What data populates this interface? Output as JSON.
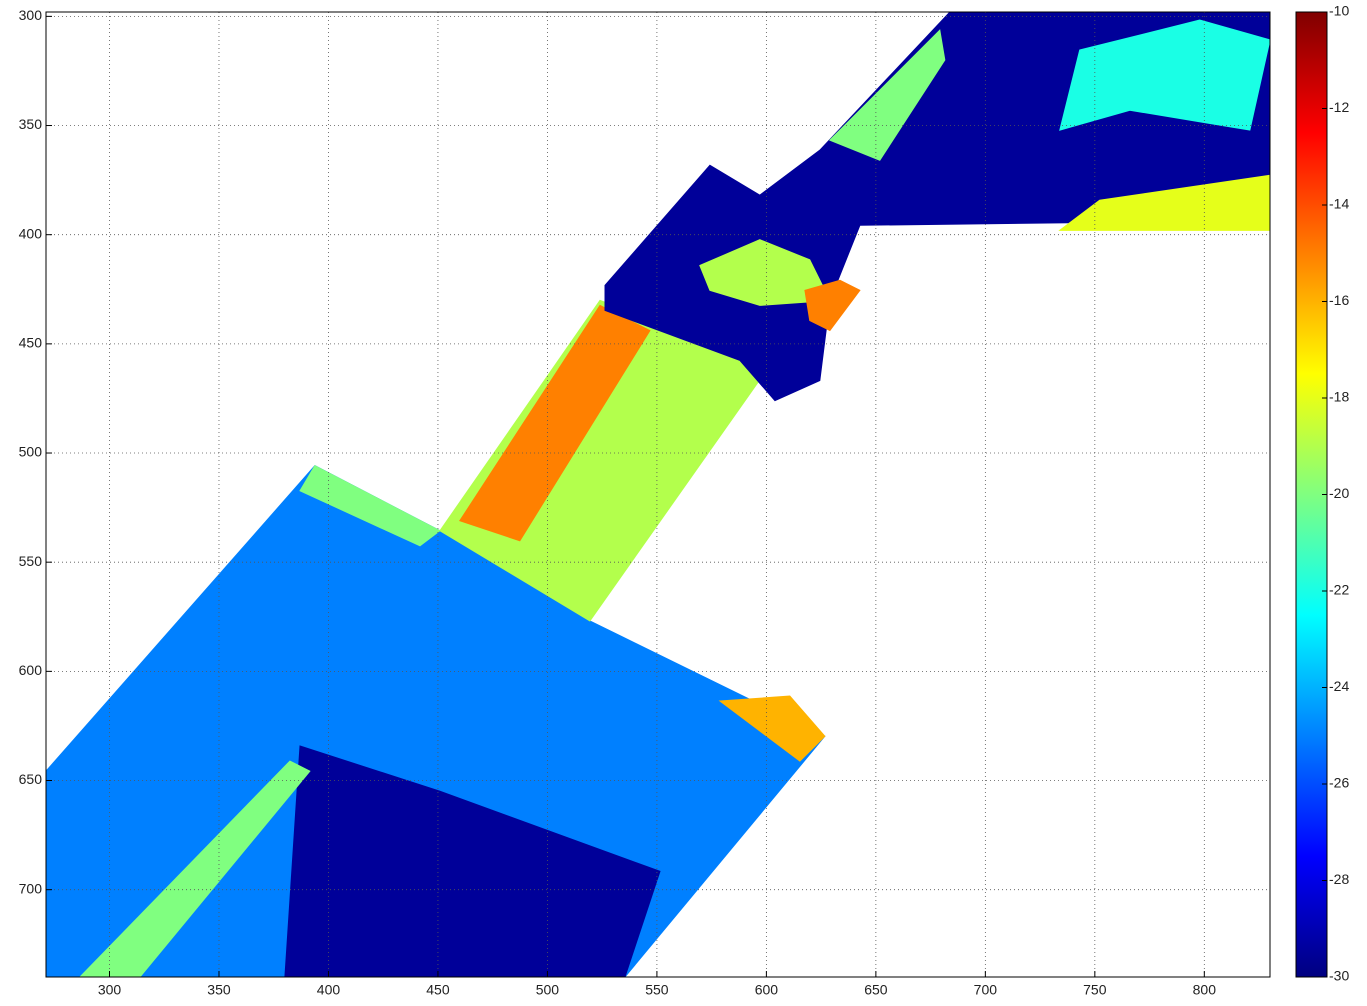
{
  "chart_data": {
    "type": "heatmap",
    "colormap": "jet",
    "ydir": "reverse",
    "grid": true,
    "xlim": [
      271,
      830
    ],
    "ylim": [
      298,
      740
    ],
    "xticks": [
      300,
      350,
      400,
      450,
      500,
      550,
      600,
      650,
      700,
      750,
      800
    ],
    "yticks": [
      300,
      350,
      400,
      450,
      500,
      550,
      600,
      650,
      700
    ],
    "clim": [
      -30,
      -10
    ],
    "cticks": [
      -10,
      -12,
      -14,
      -16,
      -18,
      -20,
      -22,
      -24,
      -26,
      -28,
      -30
    ],
    "regions": [
      {
        "points": [
          [
            271,
            645.7
          ],
          [
            393.8,
            505.8
          ],
          [
            450.9,
            535.6
          ],
          [
            519.4,
            576.9
          ],
          [
            626.7,
            629.7
          ],
          [
            535.4,
            740
          ],
          [
            271,
            740
          ]
        ],
        "value": -25
      },
      {
        "points": [
          [
            387,
            634.2
          ],
          [
            450.9,
            654.9
          ],
          [
            551.4,
            691.6
          ],
          [
            535.4,
            740
          ],
          [
            380.1,
            740
          ]
        ],
        "value": -29.5
      },
      {
        "points": [
          [
            286.5,
            740
          ],
          [
            382.4,
            641.1
          ],
          [
            391.5,
            645.7
          ],
          [
            313.9,
            740
          ]
        ],
        "value": -20
      },
      {
        "points": [
          [
            393.8,
            505.8
          ],
          [
            450.9,
            535.6
          ],
          [
            441.8,
            542.5
          ],
          [
            387,
            517.3
          ]
        ],
        "value": -20
      },
      {
        "points": [
          [
            578.8,
            613.6
          ],
          [
            610.7,
            611.3
          ],
          [
            626.7,
            629.7
          ],
          [
            615.3,
            641.1
          ]
        ],
        "value": -16
      },
      {
        "points": [
          [
            450.9,
            535.6
          ],
          [
            524,
            430.1
          ],
          [
            601.6,
            459.9
          ],
          [
            519.4,
            576.9
          ]
        ],
        "value": -19
      },
      {
        "points": [
          [
            460,
            531
          ],
          [
            524,
            432.4
          ],
          [
            546.8,
            443.9
          ],
          [
            487.4,
            540.2
          ]
        ],
        "value": -15
      },
      {
        "points": [
          [
            526.3,
            423.2
          ],
          [
            574.2,
            368.2
          ],
          [
            597,
            381.9
          ],
          [
            624.4,
            361.3
          ],
          [
            683.8,
            298
          ],
          [
            830,
            298
          ],
          [
            830,
            393.4
          ],
          [
            642.7,
            395.7
          ],
          [
            629,
            430.1
          ],
          [
            624.4,
            466.8
          ],
          [
            603.9,
            476
          ],
          [
            587.9,
            457.6
          ],
          [
            526.3,
            434.7
          ]
        ],
        "value": -29.5
      },
      {
        "points": [
          [
            569.6,
            414.1
          ],
          [
            597,
            402.3
          ],
          [
            619.8,
            411.5
          ],
          [
            629,
            430.1
          ],
          [
            597,
            432.4
          ],
          [
            574.2,
            425.5
          ]
        ],
        "value": -19
      },
      {
        "points": [
          [
            617.6,
            425.5
          ],
          [
            633.6,
            420.9
          ],
          [
            642.7,
            425.5
          ],
          [
            629,
            443.9
          ],
          [
            619.8,
            439.3
          ]
        ],
        "value": -15
      },
      {
        "points": [
          [
            734,
            398
          ],
          [
            752.2,
            384.2
          ],
          [
            830,
            372.8
          ],
          [
            830,
            398
          ]
        ],
        "value": -18
      },
      {
        "points": [
          [
            743.1,
            315.4
          ],
          [
            797.9,
            301.7
          ],
          [
            830,
            310.8
          ],
          [
            820.8,
            352.1
          ],
          [
            766,
            343
          ],
          [
            734,
            352.1
          ]
        ],
        "value": -22
      },
      {
        "points": [
          [
            629,
            356.7
          ],
          [
            679.2,
            306.3
          ],
          [
            681.5,
            320
          ],
          [
            651.8,
            365.9
          ]
        ],
        "value": -20
      }
    ]
  }
}
